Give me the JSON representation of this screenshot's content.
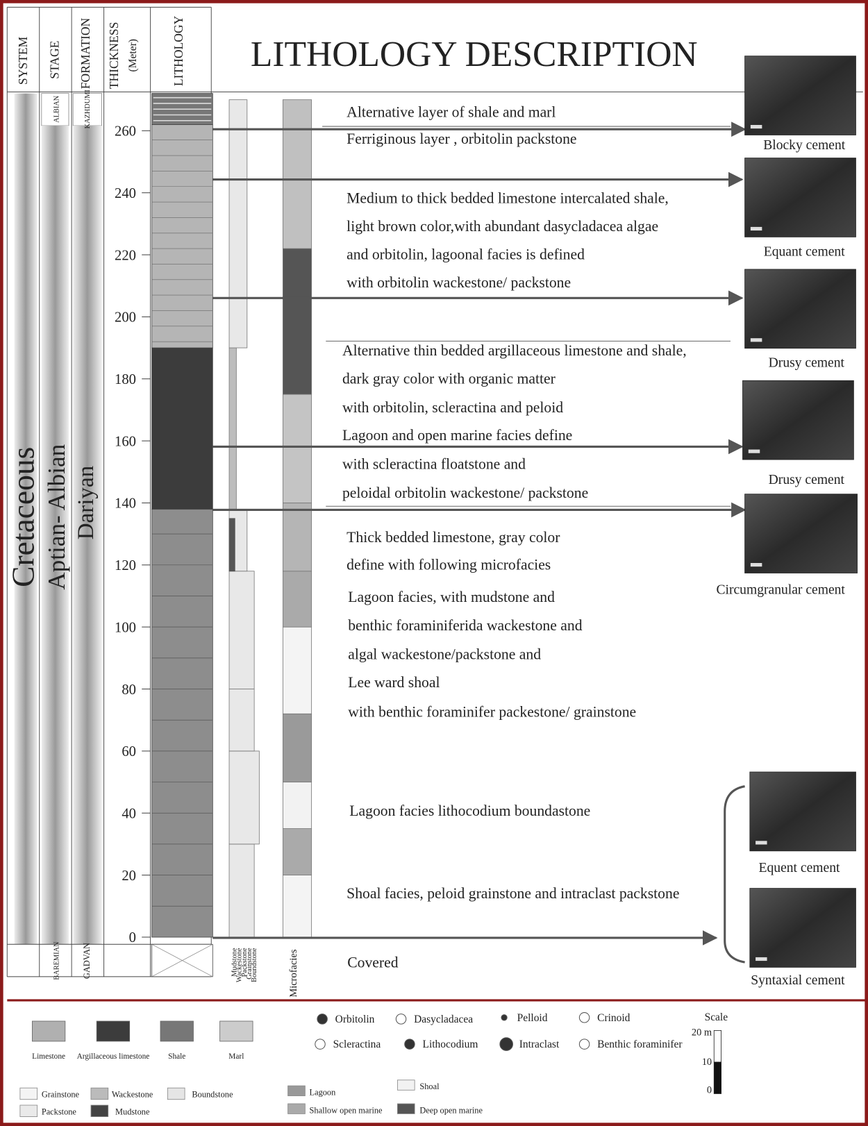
{
  "header": {
    "columns": [
      "SYSTEM",
      "STAGE",
      "FORMATION",
      "THICKNESS",
      "(Meter)",
      "LITHOLOGY"
    ],
    "title": "LITHOLOGY DESCRIPTION"
  },
  "column": {
    "system": "Cretaceous",
    "stage": [
      "ALBIAN",
      "Aptian- Albian",
      "BAREMIAN"
    ],
    "formation": [
      "KAZHDUMI",
      "Dariyan",
      "GADVAN"
    ],
    "thickness_ticks": [
      0,
      20,
      40,
      60,
      80,
      100,
      120,
      140,
      160,
      180,
      200,
      220,
      240,
      260
    ],
    "texture_labels": [
      "Mudstone",
      "Wackestone",
      "Packstone",
      "Grainstone",
      "Boundstone"
    ],
    "microfacies_label": "Microfacies"
  },
  "descriptions": [
    "Alternative layer of shale and marl",
    "Ferriginous layer , orbitolin packstone",
    "Medium to thick bedded limestone intercalated shale,",
    "light brown color,with abundant dasycladacea algae",
    " and orbitolin, lagoonal facies is defined",
    "with orbitolin wackestone/ packstone",
    "Alternative thin bedded argillaceous limestone and shale,",
    "dark gray color with organic matter",
    "with orbitolin, scleractina  and peloid",
    "Lagoon and open marine facies  define",
    "with scleractina floatstone and",
    " peloidal orbitolin wackestone/ packstone",
    "Thick bedded limestone, gray color",
    "define with following microfacies",
    "Lagoon facies, with mudstone and",
    "benthic foraminiferida wackestone and",
    "algal wackestone/packstone and",
    " Lee ward shoal",
    "with benthic foraminifer packestone/ grainstone",
    "Lagoon facies lithocodium boundastone",
    "Shoal facies, peloid grainstone and intraclast packstone",
    "Covered"
  ],
  "photos": [
    "Blocky cement",
    "Equant cement",
    "Drusy cement",
    "Drusy cement",
    "Circumgranular cement",
    "Equent cement",
    "Syntaxial cement"
  ],
  "legend": {
    "lithology": [
      "Limestone",
      "Argillaceous limestone",
      "Shale",
      "Marl"
    ],
    "symbols": [
      "Orbitolin",
      "Dasycladacea",
      "Pelloid",
      "Crinoid",
      "Scleractina",
      "Lithocodium",
      "Intraclast",
      "Benthic foraminifer"
    ],
    "scale": {
      "title": "Scale",
      "labels": [
        "20 m",
        "10",
        "0"
      ]
    },
    "texture": [
      "Grainstone",
      "Wackestone",
      "Boundstone",
      "Packstone",
      "Mudstone"
    ],
    "facies": [
      "Lagoon",
      "Shoal",
      "Shallow open marine",
      "Deep open marine"
    ]
  }
}
